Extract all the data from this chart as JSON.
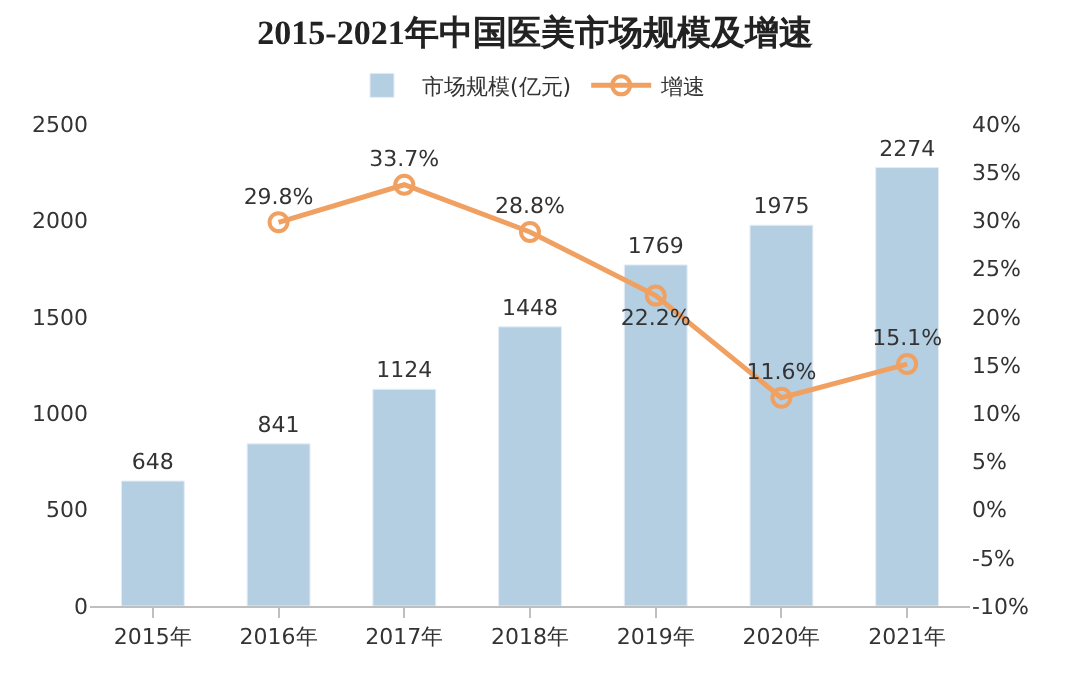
{
  "chart_data": {
    "type": "bar",
    "title": "2015-2021年中国医美市场规模及增速",
    "categories": [
      "2015年",
      "2016年",
      "2017年",
      "2018年",
      "2019年",
      "2020年",
      "2021年"
    ],
    "series": [
      {
        "name": "市场规模(亿元)",
        "color": "#b4cfe2",
        "values": [
          648,
          841,
          1124,
          1448,
          1769,
          1975,
          2274
        ],
        "value_labels": [
          "648",
          "841",
          "1124",
          "1448",
          "1769",
          "1975",
          "2274"
        ]
      },
      {
        "name": "增速",
        "type": "line",
        "axis": "y2",
        "color": "#f0a060",
        "marker": "circle",
        "values": [
          null,
          29.8,
          33.7,
          28.8,
          22.2,
          11.6,
          15.1
        ],
        "value_labels": [
          null,
          "29.8%",
          "33.7%",
          "28.8%",
          "22.2%",
          "11.6%",
          "15.1%"
        ]
      }
    ],
    "ylim": [
      0,
      2500
    ],
    "yticks": [
      0,
      500,
      1000,
      1500,
      2000,
      2500
    ],
    "y2lim": [
      -10,
      40
    ],
    "y2ticks": [
      {
        "value": -10,
        "label": "-10%"
      },
      {
        "value": -5,
        "label": "-5%"
      },
      {
        "value": 0,
        "label": "0%"
      },
      {
        "value": 5,
        "label": "5%"
      },
      {
        "value": 10,
        "label": "10%"
      },
      {
        "value": 15,
        "label": "15%"
      },
      {
        "value": 20,
        "label": "20%"
      },
      {
        "value": 25,
        "label": "25%"
      },
      {
        "value": 30,
        "label": "30%"
      },
      {
        "value": 35,
        "label": "35%"
      },
      {
        "value": 40,
        "label": "40%"
      }
    ],
    "legend": "top",
    "grid": false
  }
}
